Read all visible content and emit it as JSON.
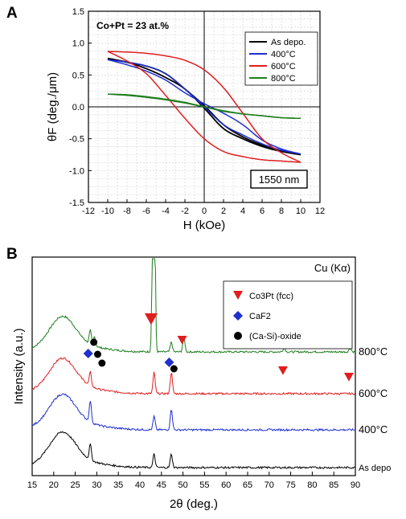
{
  "chart_data": [
    {
      "panel": "A",
      "type": "line",
      "title": "",
      "annotation": "Co+Pt = 23 at.%",
      "wavelength_label": "1550 nm",
      "xlabel": "H (kOe)",
      "ylabel": "θF (deg./μm)",
      "xlim": [
        -12,
        12
      ],
      "ylim": [
        -1.5,
        1.5
      ],
      "xticks": [
        "-12",
        "-10",
        "-8",
        "-6",
        "-4",
        "-2",
        "0",
        "2",
        "4",
        "6",
        "8",
        "10",
        "12"
      ],
      "yticks": [
        "1.5",
        "1.0",
        "0.5",
        "0.0",
        "-0.5",
        "-1.0",
        "-1.5"
      ],
      "grid": true,
      "legend_position": "top-right",
      "series": [
        {
          "name": "As depo.",
          "color": "#000000",
          "descending": {
            "x": [
              -10,
              -8,
              -6,
              -4,
              -2,
              0,
              2,
              4,
              6,
              8,
              10
            ],
            "y": [
              0.76,
              0.7,
              0.64,
              0.52,
              0.28,
              0.02,
              -0.28,
              -0.47,
              -0.6,
              -0.69,
              -0.75
            ]
          },
          "ascending": {
            "x": [
              -10,
              -8,
              -6,
              -4,
              -2,
              0,
              2,
              4,
              6,
              8,
              10
            ],
            "y": [
              0.76,
              0.7,
              0.6,
              0.46,
              0.28,
              -0.02,
              -0.34,
              -0.5,
              -0.62,
              -0.7,
              -0.75
            ]
          }
        },
        {
          "name": "400°C",
          "color": "#1f2fd0",
          "descending": {
            "x": [
              -10,
              -8,
              -6,
              -4,
              -2,
              0,
              2,
              4,
              6,
              8,
              10
            ],
            "y": [
              0.74,
              0.7,
              0.64,
              0.52,
              0.28,
              0.0,
              -0.28,
              -0.44,
              -0.58,
              -0.68,
              -0.74
            ]
          },
          "ascending": {
            "x": [
              -10,
              -8,
              -6,
              -4,
              -2,
              0,
              2,
              4,
              6,
              8,
              10
            ],
            "y": [
              0.74,
              0.66,
              0.56,
              0.42,
              0.22,
              0.05,
              -0.1,
              -0.28,
              -0.52,
              -0.66,
              -0.74
            ]
          }
        },
        {
          "name": "600°C",
          "color": "#e01e1e",
          "descending": {
            "x": [
              -10,
              -8,
              -6,
              -4,
              -2,
              0,
              2,
              4,
              6,
              8,
              10
            ],
            "y": [
              0.87,
              0.86,
              0.84,
              0.8,
              0.73,
              0.58,
              0.3,
              -0.1,
              -0.5,
              -0.72,
              -0.87
            ]
          },
          "ascending": {
            "x": [
              -10,
              -8,
              -6,
              -4,
              -2,
              0,
              2,
              4,
              6,
              8,
              10
            ],
            "y": [
              0.87,
              0.72,
              0.52,
              0.18,
              -0.18,
              -0.5,
              -0.7,
              -0.78,
              -0.83,
              -0.85,
              -0.87
            ]
          }
        },
        {
          "name": "800°C",
          "color": "#1e7e1e",
          "descending": {
            "x": [
              -10,
              -8,
              -6,
              -4,
              -2,
              0,
              2,
              4,
              6,
              8,
              10
            ],
            "y": [
              0.2,
              0.19,
              0.16,
              0.12,
              0.07,
              0.0,
              -0.07,
              -0.11,
              -0.14,
              -0.17,
              -0.18
            ]
          },
          "ascending": {
            "x": [
              -10,
              -8,
              -6,
              -4,
              -2,
              0,
              2,
              4,
              6,
              8,
              10
            ],
            "y": [
              0.2,
              0.18,
              0.15,
              0.11,
              0.06,
              0.0,
              -0.06,
              -0.11,
              -0.14,
              -0.17,
              -0.18
            ]
          }
        }
      ]
    },
    {
      "panel": "B",
      "type": "line",
      "title": "",
      "source_label": "Cu (Kα)",
      "xlabel": "2θ (deg.)",
      "ylabel": "Intensity (a.u.)",
      "xlim": [
        15,
        90
      ],
      "xticks": [
        "15",
        "20",
        "25",
        "30",
        "35",
        "40",
        "45",
        "50",
        "55",
        "60",
        "65",
        "70",
        "75",
        "80",
        "85",
        "90"
      ],
      "grid": false,
      "legend_position": "top-right",
      "legend": [
        {
          "label": "Co3Pt (fcc)",
          "marker": "triangle-down",
          "color": "#e01e1e"
        },
        {
          "label": "CaF2",
          "marker": "diamond",
          "color": "#1f2fd0"
        },
        {
          "label": "(Ca-Si)-oxide",
          "marker": "circle",
          "color": "#000000"
        }
      ],
      "series": [
        {
          "name": "800°C",
          "color": "#1e7e1e",
          "offset": 3.0,
          "hump": 0.75,
          "peaks": [
            {
              "x": 28.5,
              "h": 0.35
            },
            {
              "x": 29.5,
              "h": 0.25
            },
            {
              "x": 43.2,
              "h": 9.0
            },
            {
              "x": 47.3,
              "h": 0.25
            },
            {
              "x": 50.2,
              "h": 0.4
            },
            {
              "x": 73.5,
              "h": 0.12
            },
            {
              "x": 88.8,
              "h": 0.1
            }
          ]
        },
        {
          "name": "600°C",
          "color": "#e01e1e",
          "offset": 2.0,
          "hump": 0.75,
          "peaks": [
            {
              "x": 28.5,
              "h": 0.35
            },
            {
              "x": 43.3,
              "h": 0.55
            },
            {
              "x": 47.3,
              "h": 0.55
            }
          ]
        },
        {
          "name": "400°C",
          "color": "#1f2fd0",
          "offset": 1.0,
          "hump": 0.75,
          "peaks": [
            {
              "x": 28.5,
              "h": 0.55
            },
            {
              "x": 43.3,
              "h": 0.35
            },
            {
              "x": 47.3,
              "h": 0.55
            }
          ]
        },
        {
          "name": "As depo",
          "color": "#000000",
          "offset": 0.0,
          "hump": 0.75,
          "peaks": [
            {
              "x": 28.5,
              "h": 0.4
            },
            {
              "x": 43.3,
              "h": 0.35
            },
            {
              "x": 47.3,
              "h": 0.35
            }
          ]
        }
      ],
      "markers": [
        {
          "kind": "triangle-down",
          "x": 42.6,
          "color": "#e01e1e"
        },
        {
          "kind": "triangle-down",
          "x": 49.8,
          "color": "#e01e1e"
        },
        {
          "kind": "triangle-down",
          "x": 73.2,
          "color": "#e01e1e"
        },
        {
          "kind": "triangle-down",
          "x": 88.5,
          "color": "#e01e1e"
        },
        {
          "kind": "diamond",
          "x": 28.0,
          "color": "#1f2fd0"
        },
        {
          "kind": "diamond",
          "x": 46.8,
          "color": "#1f2fd0"
        },
        {
          "kind": "circle",
          "x": 29.3,
          "color": "#000000"
        },
        {
          "kind": "circle",
          "x": 30.2,
          "color": "#000000"
        },
        {
          "kind": "circle",
          "x": 31.2,
          "color": "#000000"
        },
        {
          "kind": "circle",
          "x": 47.9,
          "color": "#000000"
        }
      ]
    }
  ]
}
